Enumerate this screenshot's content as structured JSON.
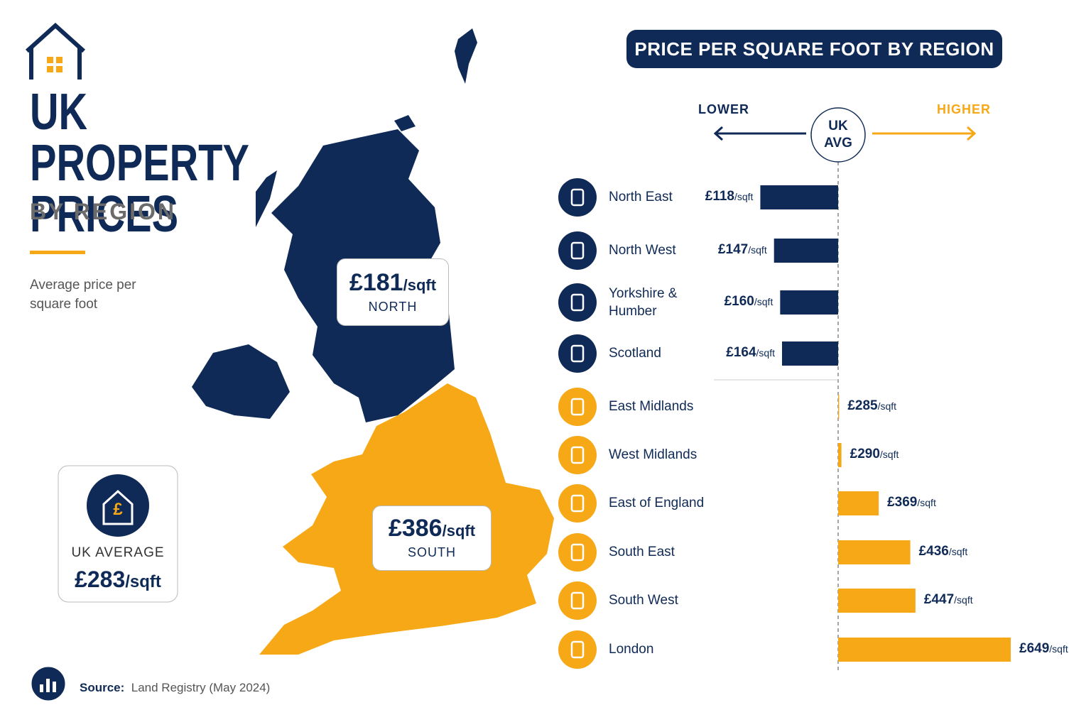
{
  "header": {
    "title": "UK PROPERTY PRICES",
    "subtitle": "BY REGION",
    "description": "Average price per square foot"
  },
  "map_regions": [
    {
      "name": "NORTH",
      "value": 181,
      "value_label": "£181"
    },
    {
      "name": "SOUTH",
      "value": 386,
      "value_label": "£386"
    }
  ],
  "source": {
    "label": "Source:",
    "text": "Land Registry (May 2024)"
  },
  "chart_data": {
    "type": "bar",
    "title": "PRICE PER SQUARE FOOT BY REGION",
    "lower_label": "LOWER",
    "higher_label": "HIGHER",
    "unit": "/sqft",
    "average": {
      "short_label": "UK AVG",
      "label": "UK AVERAGE",
      "value": 283,
      "value_label": "£283"
    },
    "categories": [
      "North East",
      "North West",
      "Yorkshire & Humber",
      "Scotland",
      "East Midlands",
      "West Midlands",
      "East of England",
      "South East",
      "South West",
      "London"
    ],
    "values": [
      118,
      147,
      160,
      164,
      285,
      290,
      369,
      436,
      447,
      649
    ],
    "value_labels": [
      "£118",
      "£147",
      "£160",
      "£164",
      "£285",
      "£290",
      "£369",
      "£436",
      "£447",
      "£649"
    ],
    "colors": {
      "below": "#0f2a56",
      "above": "#f6a817"
    }
  }
}
